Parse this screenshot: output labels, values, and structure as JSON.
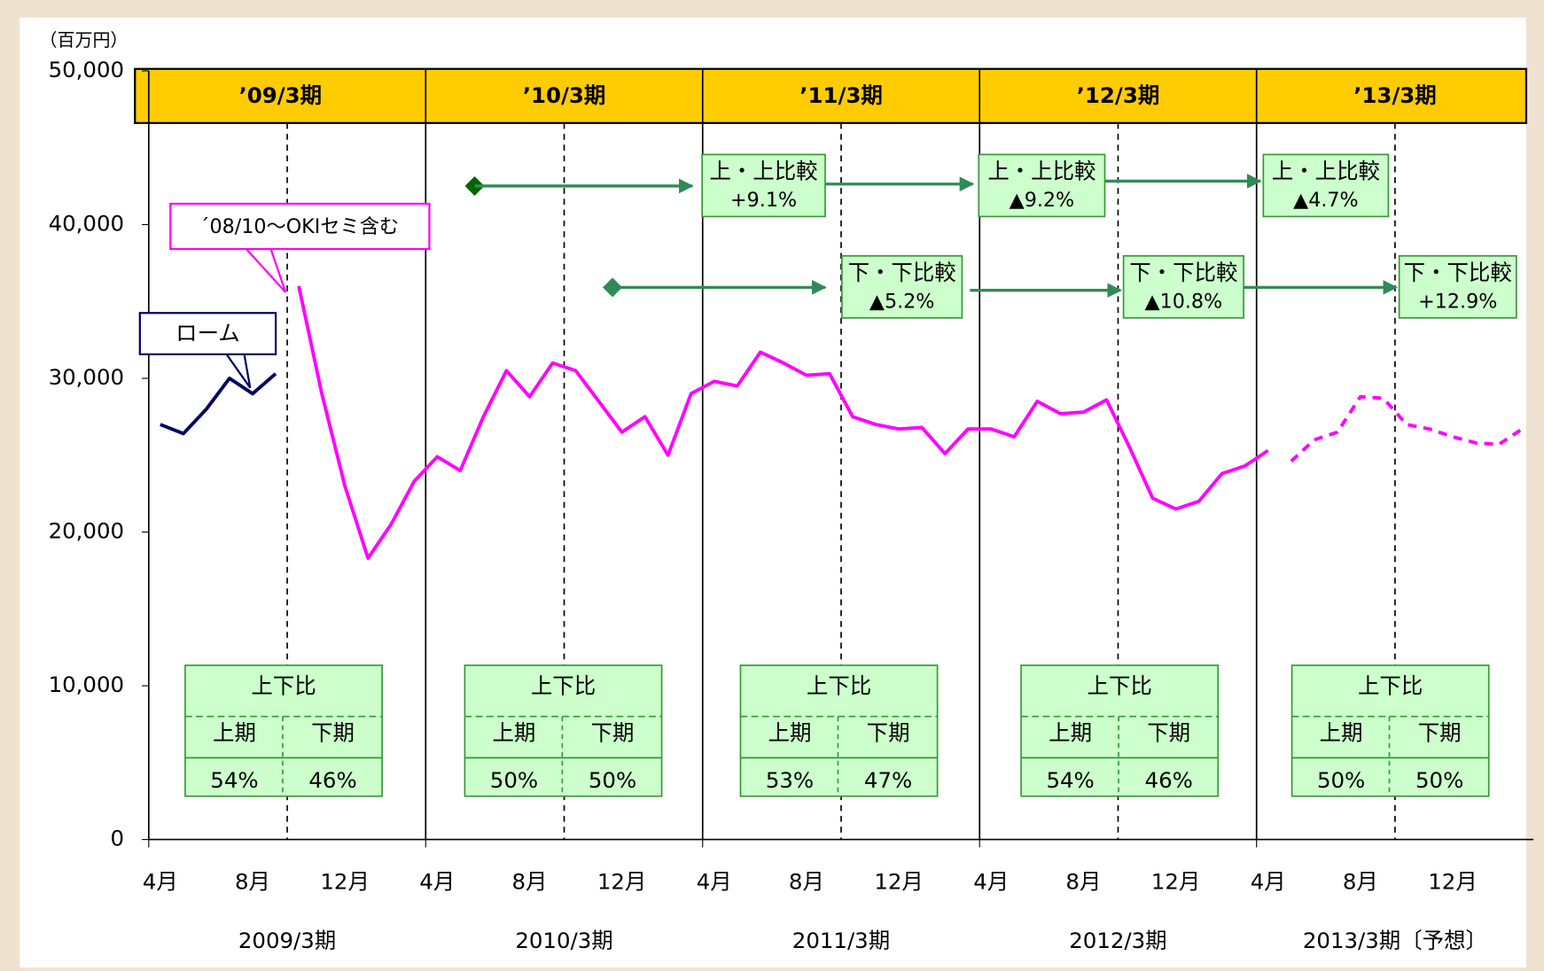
{
  "chart_data": {
    "type": "line",
    "y_unit": "（百万円）",
    "categories": [
      "4月",
      null,
      null,
      null,
      "8月",
      null,
      null,
      null,
      "12月",
      null,
      null,
      null,
      "4月",
      null,
      null,
      null,
      "8月",
      null,
      null,
      null,
      "12月",
      null,
      null,
      null,
      "4月",
      null,
      null,
      null,
      "8月",
      null,
      null,
      null,
      "12月",
      null,
      null,
      null,
      "4月",
      null,
      null,
      null,
      "8月",
      null,
      null,
      null,
      "12月",
      null,
      null,
      null,
      "4月",
      null,
      null,
      null,
      "8月",
      null,
      null,
      null,
      "12月",
      null,
      null,
      null
    ],
    "ylim": [
      0,
      50000
    ],
    "yticks": [
      0,
      {
        "value": 10000,
        "label": "10,000"
      },
      {
        "value": 20000,
        "label": "20,000"
      },
      {
        "value": 30000,
        "label": "30,000"
      },
      {
        "value": 40000,
        "label": "40,000"
      },
      {
        "value": 50000,
        "label": "50,000"
      }
    ],
    "series": [
      {
        "name": "ローム",
        "color": "#000066",
        "style": "solid",
        "values": [
          27000,
          26400,
          28000,
          30000,
          29000,
          30300,
          null,
          null,
          null,
          null,
          null,
          null,
          null,
          null,
          null,
          null,
          null,
          null,
          null,
          null,
          null,
          null,
          null,
          null,
          null,
          null,
          null,
          null,
          null,
          null,
          null,
          null,
          null,
          null,
          null,
          null,
          null,
          null,
          null,
          null,
          null,
          null,
          null,
          null,
          null,
          null,
          null,
          null,
          null,
          null,
          null,
          null,
          null,
          null,
          null,
          null,
          null,
          null,
          null,
          null
        ]
      },
      {
        "name": "´08/10〜OKIセミ含む",
        "color": "#ff00ff",
        "style": "solid",
        "values": [
          null,
          null,
          null,
          null,
          null,
          null,
          36000,
          29000,
          23000,
          18300,
          20500,
          23300,
          24900,
          24000,
          27500,
          30500,
          28800,
          31000,
          30500,
          28500,
          26500,
          27500,
          25000,
          29000,
          29800,
          29500,
          31700,
          31000,
          30200,
          30300,
          27500,
          27000,
          26700,
          26800,
          25100,
          26700,
          26700,
          26200,
          28500,
          27700,
          27800,
          28600,
          25500,
          22200,
          21500,
          22000,
          23800,
          24300,
          25300,
          null,
          null,
          null,
          null,
          null,
          null,
          null,
          null,
          null,
          null,
          null
        ]
      },
      {
        "name": null,
        "color": "#ff00ff",
        "style": "dashed",
        "values": [
          null,
          null,
          null,
          null,
          null,
          null,
          null,
          null,
          null,
          null,
          null,
          null,
          null,
          null,
          null,
          null,
          null,
          null,
          null,
          null,
          null,
          null,
          null,
          null,
          null,
          null,
          null,
          null,
          null,
          null,
          null,
          null,
          null,
          null,
          null,
          null,
          null,
          null,
          null,
          null,
          null,
          null,
          null,
          null,
          null,
          null,
          null,
          null,
          null,
          24600,
          26000,
          26500,
          28800,
          28700,
          27000,
          26700,
          26200,
          25800,
          25700,
          26700
        ]
      }
    ],
    "period_headers": [
      "’09/3期",
      "’10/3期",
      "’11/3期",
      "’12/3期",
      "’13/3期"
    ],
    "period_labels": [
      "2009/3期",
      "2010/3期",
      "2011/3期",
      "2012/3期",
      "2013/3期〔予想〕"
    ],
    "ratio_boxes": [
      {
        "title": "上下比",
        "first": "上期",
        "second": "下期",
        "values": [
          54,
          46
        ],
        "value_labels": [
          "54%",
          "46%"
        ]
      },
      {
        "title": "上下比",
        "first": "上期",
        "second": "下期",
        "values": [
          50,
          50
        ],
        "value_labels": [
          "50%",
          "50%"
        ]
      },
      {
        "title": "上下比",
        "first": "上期",
        "second": "下期",
        "values": [
          53,
          47
        ],
        "value_labels": [
          "53%",
          "47%"
        ]
      },
      {
        "title": "上下比",
        "first": "上期",
        "second": "下期",
        "values": [
          54,
          46
        ],
        "value_labels": [
          "54%",
          "46%"
        ]
      },
      {
        "title": "上下比",
        "first": "上期",
        "second": "下期",
        "values": [
          50,
          50
        ],
        "value_labels": [
          "50%",
          "50%"
        ]
      }
    ],
    "first_half_comparisons": [
      {
        "label": "上・上比較",
        "value": 9.1,
        "value_label": "+9.1%",
        "color": "#0000ff"
      },
      {
        "label": "上・上比較",
        "value": -9.2,
        "value_label": "▲9.2%",
        "color": "#ff0000"
      },
      {
        "label": "上・上比較",
        "value": -4.7,
        "value_label": "▲4.7%",
        "color": "#ff0000"
      }
    ],
    "second_half_comparisons": [
      {
        "label": "下・下比較",
        "value": -5.2,
        "value_label": "▲5.2%",
        "color": "#ff0000"
      },
      {
        "label": "下・下比較",
        "value": -10.8,
        "value_label": "▲10.8%",
        "color": "#ff0000"
      },
      {
        "label": "下・下比較",
        "value": 12.9,
        "value_label": "+12.9%",
        "color": "#3399ff"
      }
    ]
  }
}
